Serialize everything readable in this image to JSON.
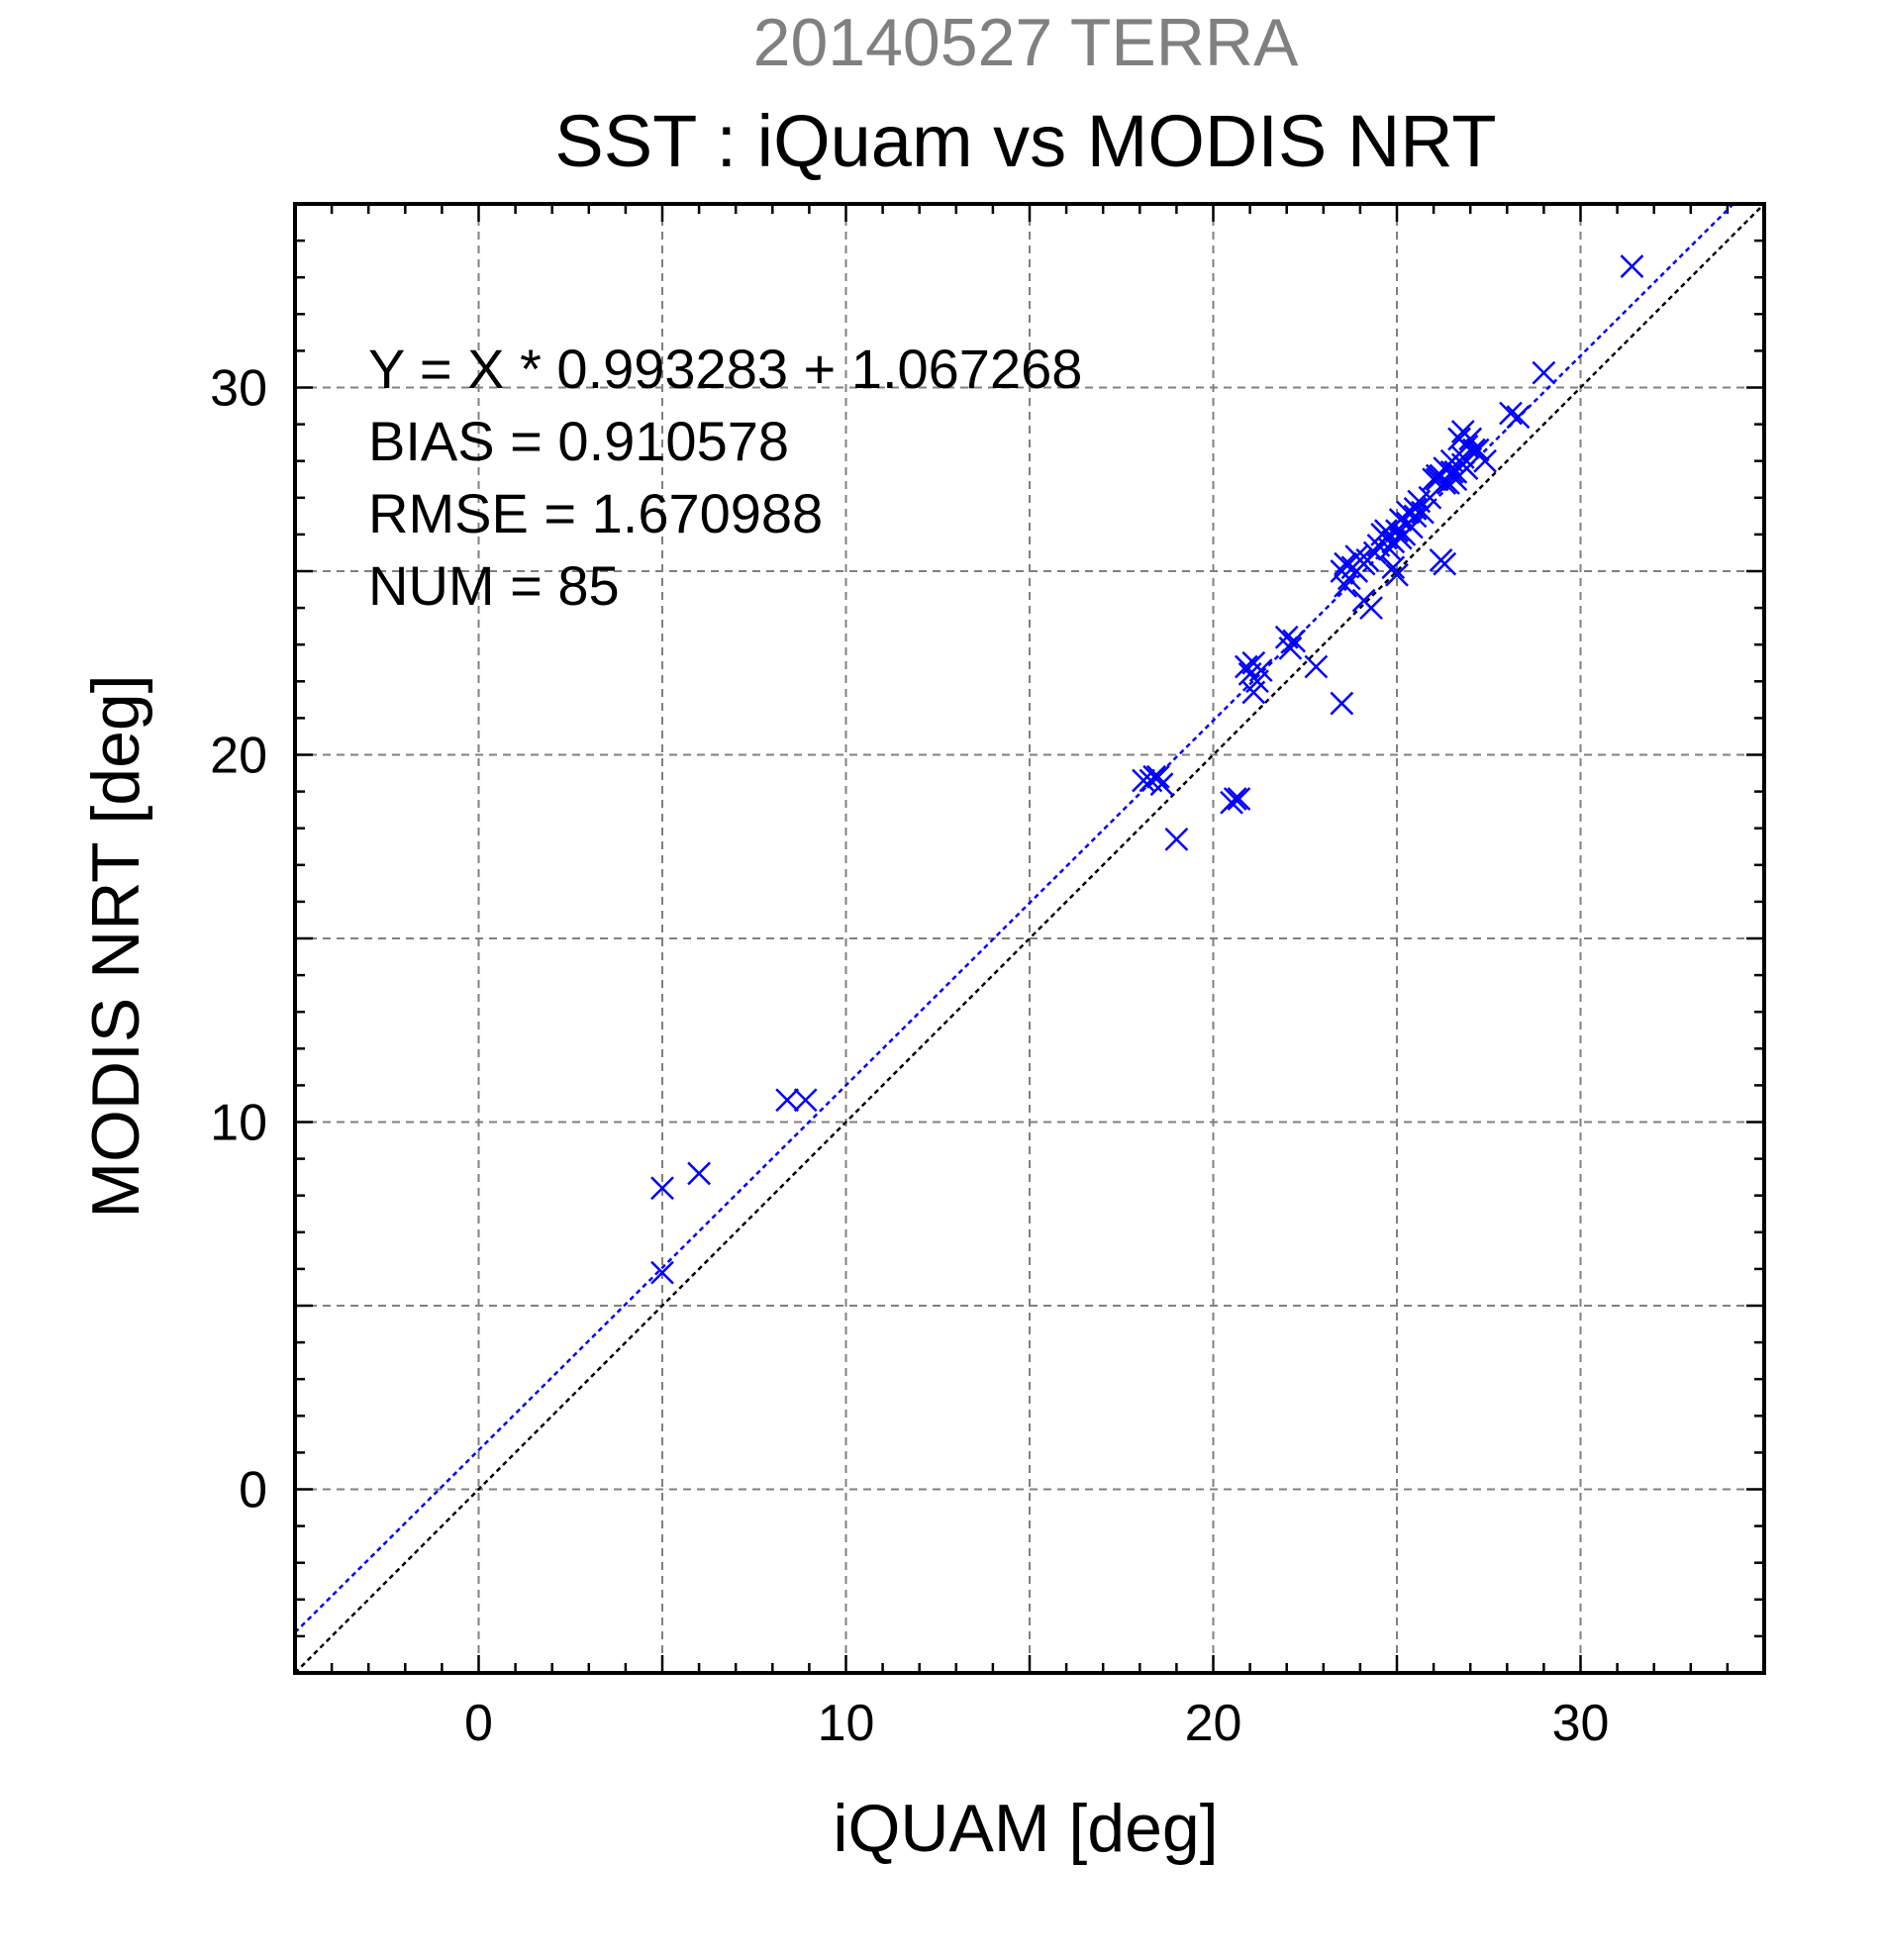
{
  "chart_data": {
    "type": "scatter",
    "supertitle": "20140527 TERRA",
    "title": "SST : iQuam vs MODIS NRT",
    "xlabel": "iQUAM [deg]",
    "ylabel": "MODIS NRT [deg]",
    "xlim": [
      -5,
      35
    ],
    "ylim": [
      -5,
      35
    ],
    "xticks": [
      0,
      10,
      20,
      30
    ],
    "yticks": [
      0,
      10,
      20,
      30
    ],
    "grid": true,
    "marker": "x",
    "marker_color": "#0000ff",
    "stats": [
      "Y = X * 0.993283 + 1.067268",
      "BIAS = 0.910578",
      "RMSE = 1.670988",
      "NUM = 85"
    ],
    "lines": [
      {
        "kind": "regression",
        "slope": 0.993283,
        "intercept": 1.067268,
        "color": "#0000ff"
      },
      {
        "kind": "identity",
        "slope": 1,
        "intercept": 0,
        "color": "#000000"
      }
    ],
    "series": [
      {
        "points": [
          [
            31.4,
            33.3
          ],
          [
            29.0,
            30.4
          ],
          [
            28.1,
            29.3
          ],
          [
            28.3,
            29.2
          ],
          [
            27.4,
            28.0
          ],
          [
            26.8,
            28.8
          ],
          [
            26.7,
            28.6
          ],
          [
            26.9,
            28.4
          ],
          [
            27.1,
            28.3
          ],
          [
            26.8,
            28.1
          ],
          [
            26.6,
            27.7
          ],
          [
            26.3,
            27.8
          ],
          [
            26.1,
            27.6
          ],
          [
            26.0,
            27.5
          ],
          [
            26.2,
            27.6
          ],
          [
            26.4,
            27.4
          ],
          [
            26.8,
            27.9
          ],
          [
            27.0,
            28.6
          ],
          [
            26.3,
            27.4
          ],
          [
            26.5,
            27.7
          ],
          [
            25.6,
            26.9
          ],
          [
            25.5,
            26.7
          ],
          [
            25.3,
            26.6
          ],
          [
            25.1,
            26.4
          ],
          [
            25.4,
            26.2
          ],
          [
            25.2,
            26.0
          ],
          [
            25.0,
            26.1
          ],
          [
            24.9,
            25.8
          ],
          [
            24.7,
            25.9
          ],
          [
            24.6,
            26.0
          ],
          [
            24.5,
            25.7
          ],
          [
            25.1,
            25.9
          ],
          [
            25.3,
            26.3
          ],
          [
            24.8,
            25.6
          ],
          [
            24.0,
            25.3
          ],
          [
            23.8,
            25.1
          ],
          [
            23.6,
            25.2
          ],
          [
            23.5,
            25.0
          ],
          [
            24.1,
            25.2
          ],
          [
            23.9,
            25.0
          ],
          [
            23.7,
            24.8
          ],
          [
            23.9,
            25.4
          ],
          [
            24.3,
            24.0
          ],
          [
            24.1,
            24.2
          ],
          [
            25.0,
            24.9
          ],
          [
            24.9,
            25.1
          ],
          [
            26.3,
            25.2
          ],
          [
            26.2,
            25.3
          ],
          [
            23.5,
            21.4
          ],
          [
            22.8,
            22.4
          ],
          [
            22.2,
            23.1
          ],
          [
            22.0,
            23.2
          ],
          [
            21.3,
            22.3
          ],
          [
            21.1,
            22.5
          ],
          [
            20.9,
            22.4
          ],
          [
            21.2,
            22.0
          ],
          [
            21.1,
            21.7
          ],
          [
            20.6,
            18.8
          ],
          [
            20.5,
            18.7
          ],
          [
            20.7,
            18.8
          ],
          [
            19.0,
            17.7
          ],
          [
            18.1,
            19.3
          ],
          [
            18.3,
            19.3
          ],
          [
            18.5,
            19.4
          ],
          [
            18.6,
            19.2
          ],
          [
            8.4,
            10.6
          ],
          [
            8.9,
            10.6
          ],
          [
            6.0,
            8.6
          ],
          [
            5.0,
            8.2
          ],
          [
            5.0,
            5.9
          ],
          [
            25.7,
            26.6
          ],
          [
            26.6,
            27.5
          ],
          [
            24.4,
            25.5
          ],
          [
            22.1,
            22.9
          ],
          [
            27.2,
            28.3
          ],
          [
            26.1,
            27.5
          ],
          [
            25.9,
            27.0
          ],
          [
            24.7,
            26.1
          ],
          [
            23.6,
            24.6
          ],
          [
            21.0,
            22.2
          ],
          [
            18.4,
            19.4
          ],
          [
            26.9,
            27.8
          ],
          [
            25.5,
            26.5
          ],
          [
            24.2,
            25.3
          ],
          [
            26.5,
            28.0
          ]
        ]
      }
    ]
  }
}
